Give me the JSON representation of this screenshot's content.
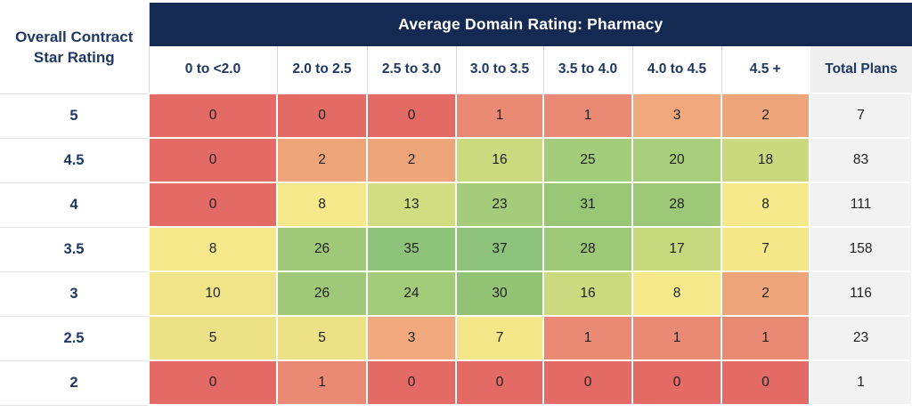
{
  "chart_data": {
    "type": "heatmap",
    "title": "Average Domain Rating: Pharmacy",
    "corner_line1": "Overall Contract",
    "corner_line2": "Star Rating",
    "categories": [
      "0 to <2.0",
      "2.0 to 2.5",
      "2.5 to 3.0",
      "3.0 to 3.5",
      "3.5 to 4.0",
      "4.0 to 4.5",
      "4.5 +"
    ],
    "total_label": "Total Plans",
    "row_axis_label": "Overall Contract Star Rating",
    "row_labels": [
      "5",
      "4.5",
      "4",
      "3.5",
      "3",
      "2.5",
      "2"
    ],
    "rows": [
      [
        0,
        0,
        0,
        1,
        1,
        3,
        2
      ],
      [
        0,
        2,
        2,
        16,
        25,
        20,
        18
      ],
      [
        0,
        8,
        13,
        23,
        31,
        28,
        8
      ],
      [
        8,
        26,
        35,
        37,
        28,
        17,
        7
      ],
      [
        10,
        26,
        24,
        30,
        16,
        8,
        2
      ],
      [
        5,
        5,
        3,
        7,
        1,
        1,
        1
      ],
      [
        0,
        1,
        0,
        0,
        0,
        0,
        0
      ]
    ],
    "totals": [
      7,
      83,
      111,
      158,
      116,
      23,
      1
    ],
    "color_scale_note": "red-yellow-green heatmap, red=low count, green=high count"
  },
  "colors": {
    "header_bg": "#152A52",
    "header_text": "#FFFFFF",
    "navy_text": "#1F3864",
    "cell_text": "#212121",
    "total_bg": "#F2F2F2",
    "total_header_bg": "#EFEFEF",
    "value_colors": {
      "0": "#E46A66",
      "1": "#EA8A74",
      "2": "#EFA57A",
      "3": "#F0A87C",
      "5": "#EDE186",
      "7": "#F3E78A",
      "8": "#F5E98B",
      "10": "#F0E388",
      "13": "#D0DD81",
      "16": "#CBD97F",
      "17": "#C7D77E",
      "18": "#CBD97E",
      "20": "#A8CE7C",
      "23": "#A5CC7B",
      "24": "#A2CB7A",
      "25": "#A3CC7B",
      "26": "#9FC979",
      "28": "#9CC878",
      "30": "#93C476",
      "31": "#97C675",
      "35": "#8EC37A",
      "37": "#8CC27B"
    }
  }
}
